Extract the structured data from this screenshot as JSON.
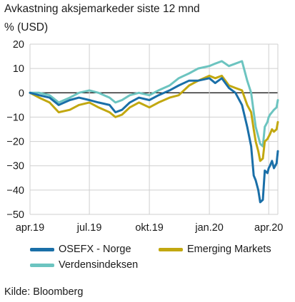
{
  "title": "Avkastning aksjemarkeder siste 12 mnd",
  "unit_label": "% (USD)",
  "source": "Kilde: Bloomberg",
  "colors": {
    "OSEFX - Norge": "#1a6fa8",
    "Emerging Markets": "#c2a810",
    "Verdensindeksen": "#6cc4c0"
  },
  "chart_data": {
    "type": "line",
    "title": "Avkastning aksjemarkeder siste 12 mnd",
    "ylabel": "% (USD)",
    "xlabel": "",
    "ylim": [
      -50,
      20
    ],
    "yticks": [
      20,
      10,
      0,
      -10,
      -20,
      -30,
      -40,
      -50
    ],
    "xlim": [
      "2019-04-01",
      "2020-04-15"
    ],
    "xticks": [
      {
        "date": "2019-04-01",
        "label": "apr.19"
      },
      {
        "date": "2019-07-01",
        "label": "jul.19"
      },
      {
        "date": "2019-10-01",
        "label": "okt.19"
      },
      {
        "date": "2020-01-01",
        "label": "jan.20"
      },
      {
        "date": "2020-04-01",
        "label": "apr.20"
      }
    ],
    "grid": "horizontal and vertical",
    "legend": "bottom",
    "series": [
      {
        "name": "OSEFX - Norge",
        "points": [
          [
            "2019-04-01",
            0
          ],
          [
            "2019-04-15",
            -1
          ],
          [
            "2019-05-01",
            -2
          ],
          [
            "2019-05-15",
            -5
          ],
          [
            "2019-06-01",
            -3
          ],
          [
            "2019-06-15",
            -2
          ],
          [
            "2019-07-01",
            -3
          ],
          [
            "2019-07-15",
            -4
          ],
          [
            "2019-08-01",
            -5
          ],
          [
            "2019-08-10",
            -8
          ],
          [
            "2019-08-20",
            -7
          ],
          [
            "2019-09-01",
            -4
          ],
          [
            "2019-09-15",
            -2
          ],
          [
            "2019-10-01",
            -3
          ],
          [
            "2019-10-15",
            -1
          ],
          [
            "2019-11-01",
            1
          ],
          [
            "2019-11-15",
            3
          ],
          [
            "2019-12-01",
            5
          ],
          [
            "2019-12-15",
            5
          ],
          [
            "2020-01-01",
            6
          ],
          [
            "2020-01-10",
            4
          ],
          [
            "2020-01-20",
            6
          ],
          [
            "2020-01-31",
            2
          ],
          [
            "2020-02-10",
            0
          ],
          [
            "2020-02-20",
            -5
          ],
          [
            "2020-02-28",
            -14
          ],
          [
            "2020-03-05",
            -22
          ],
          [
            "2020-03-09",
            -34
          ],
          [
            "2020-03-12",
            -36
          ],
          [
            "2020-03-16",
            -40
          ],
          [
            "2020-03-19",
            -45
          ],
          [
            "2020-03-23",
            -44
          ],
          [
            "2020-03-26",
            -32
          ],
          [
            "2020-03-30",
            -33
          ],
          [
            "2020-04-01",
            -31
          ],
          [
            "2020-04-03",
            -30
          ],
          [
            "2020-04-06",
            -28
          ],
          [
            "2020-04-09",
            -31
          ],
          [
            "2020-04-13",
            -29
          ],
          [
            "2020-04-15",
            -24
          ]
        ]
      },
      {
        "name": "Emerging Markets",
        "points": [
          [
            "2019-04-01",
            0
          ],
          [
            "2019-04-15",
            -2
          ],
          [
            "2019-05-01",
            -4
          ],
          [
            "2019-05-15",
            -8
          ],
          [
            "2019-06-01",
            -7
          ],
          [
            "2019-06-15",
            -5
          ],
          [
            "2019-07-01",
            -4
          ],
          [
            "2019-07-15",
            -6
          ],
          [
            "2019-08-01",
            -8
          ],
          [
            "2019-08-10",
            -10
          ],
          [
            "2019-08-20",
            -9
          ],
          [
            "2019-09-01",
            -6
          ],
          [
            "2019-09-15",
            -4
          ],
          [
            "2019-10-01",
            -6
          ],
          [
            "2019-10-15",
            -4
          ],
          [
            "2019-11-01",
            -2
          ],
          [
            "2019-11-15",
            -1
          ],
          [
            "2019-12-01",
            3
          ],
          [
            "2019-12-15",
            5
          ],
          [
            "2020-01-01",
            7
          ],
          [
            "2020-01-10",
            6
          ],
          [
            "2020-01-20",
            7
          ],
          [
            "2020-01-31",
            3
          ],
          [
            "2020-02-10",
            2
          ],
          [
            "2020-02-20",
            1
          ],
          [
            "2020-02-28",
            -5
          ],
          [
            "2020-03-05",
            -8
          ],
          [
            "2020-03-09",
            -15
          ],
          [
            "2020-03-12",
            -20
          ],
          [
            "2020-03-16",
            -24
          ],
          [
            "2020-03-19",
            -28
          ],
          [
            "2020-03-23",
            -27
          ],
          [
            "2020-03-26",
            -20
          ],
          [
            "2020-03-30",
            -19
          ],
          [
            "2020-04-01",
            -18
          ],
          [
            "2020-04-03",
            -17
          ],
          [
            "2020-04-06",
            -15
          ],
          [
            "2020-04-09",
            -16
          ],
          [
            "2020-04-13",
            -15
          ],
          [
            "2020-04-15",
            -12
          ]
        ]
      },
      {
        "name": "Verdensindeksen",
        "points": [
          [
            "2019-04-01",
            0
          ],
          [
            "2019-04-15",
            0
          ],
          [
            "2019-05-01",
            -1
          ],
          [
            "2019-05-15",
            -4
          ],
          [
            "2019-06-01",
            -2
          ],
          [
            "2019-06-15",
            0
          ],
          [
            "2019-07-01",
            1
          ],
          [
            "2019-07-15",
            0
          ],
          [
            "2019-08-01",
            -2
          ],
          [
            "2019-08-10",
            -4
          ],
          [
            "2019-08-20",
            -3
          ],
          [
            "2019-09-01",
            -1
          ],
          [
            "2019-09-15",
            0
          ],
          [
            "2019-10-01",
            -1
          ],
          [
            "2019-10-15",
            1
          ],
          [
            "2019-11-01",
            3
          ],
          [
            "2019-11-15",
            6
          ],
          [
            "2019-12-01",
            8
          ],
          [
            "2019-12-15",
            10
          ],
          [
            "2020-01-01",
            11
          ],
          [
            "2020-01-10",
            12
          ],
          [
            "2020-01-20",
            13
          ],
          [
            "2020-01-31",
            11
          ],
          [
            "2020-02-10",
            12
          ],
          [
            "2020-02-20",
            13
          ],
          [
            "2020-02-28",
            5
          ],
          [
            "2020-03-05",
            0
          ],
          [
            "2020-03-09",
            -8
          ],
          [
            "2020-03-12",
            -14
          ],
          [
            "2020-03-16",
            -18
          ],
          [
            "2020-03-19",
            -21
          ],
          [
            "2020-03-23",
            -22
          ],
          [
            "2020-03-26",
            -14
          ],
          [
            "2020-03-30",
            -12
          ],
          [
            "2020-04-01",
            -10
          ],
          [
            "2020-04-03",
            -9
          ],
          [
            "2020-04-06",
            -8
          ],
          [
            "2020-04-09",
            -7
          ],
          [
            "2020-04-13",
            -6
          ],
          [
            "2020-04-15",
            -3
          ]
        ]
      }
    ]
  }
}
